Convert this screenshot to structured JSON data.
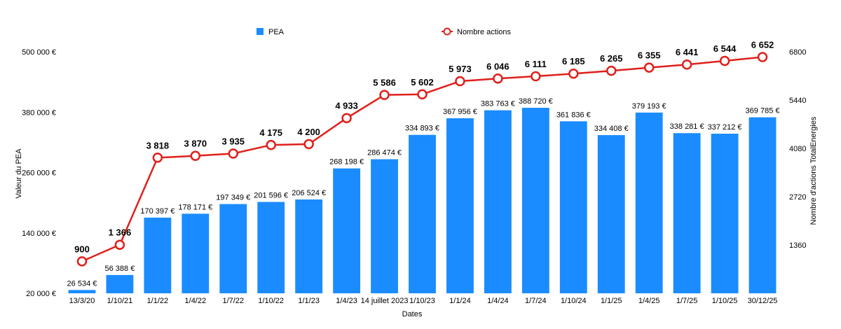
{
  "chart_data": {
    "type": "bar",
    "xlabel": "Dates",
    "ylabel": "Valeur du PEA",
    "y2label": "Nombre d'actions TotalEnergies",
    "ylim": [
      20000,
      500000
    ],
    "yticks": [
      "20 000 €",
      "140 000 €",
      "260 000 €",
      "380 000 €",
      "500 000 €"
    ],
    "y2lim": [
      0,
      6800
    ],
    "y2ticks": [
      "1360",
      "2720",
      "4080",
      "5440",
      "6800"
    ],
    "categories": [
      "13/3/20",
      "1/10/21",
      "1/1/22",
      "1/4/22",
      "1/7/22",
      "1/10/22",
      "1/1/23",
      "1/4/23",
      "14 juillet 2023",
      "1/10/23",
      "1/1/24",
      "1/4/24",
      "1/7/24",
      "1/10/24",
      "1/1/25",
      "1/4/25",
      "1/7/25",
      "1/10/25",
      "30/12/25"
    ],
    "series": [
      {
        "name": "PEA",
        "kind": "bar",
        "color": "#1a8cff",
        "values": [
          26534,
          56388,
          170397,
          178171,
          197349,
          201596,
          206524,
          268198,
          286474,
          334893,
          367956,
          383763,
          388720,
          361836,
          334408,
          379193,
          338281,
          337212,
          369785
        ],
        "labels": [
          "26 534 €",
          "56 388 €",
          "170 397 €",
          "178 171 €",
          "197 349 €",
          "201 596 €",
          "206 524 €",
          "268 198 €",
          "286 474 €",
          "334 893 €",
          "367 956 €",
          "383 763 €",
          "388 720 €",
          "361 836 €",
          "334 408 €",
          "379 193 €",
          "338 281 €",
          "337 212 €",
          "369 785 €"
        ]
      },
      {
        "name": "Nombre actions",
        "kind": "line",
        "color": "#e0201b",
        "values": [
          900,
          1366,
          3818,
          3870,
          3935,
          4175,
          4200,
          4933,
          5586,
          5602,
          5973,
          6046,
          6111,
          6185,
          6265,
          6355,
          6441,
          6544,
          6652
        ],
        "labels": [
          "900",
          "1 366",
          "3 818",
          "3 870",
          "3 935",
          "4 175",
          "4 200",
          "4 933",
          "5 586",
          "5 602",
          "5 973",
          "6 046",
          "6 111",
          "6 185",
          "6 265",
          "6 355",
          "6 441",
          "6 544",
          "6 652"
        ]
      }
    ],
    "legend": {
      "position": "top",
      "items": [
        "PEA",
        "Nombre actions"
      ]
    }
  }
}
